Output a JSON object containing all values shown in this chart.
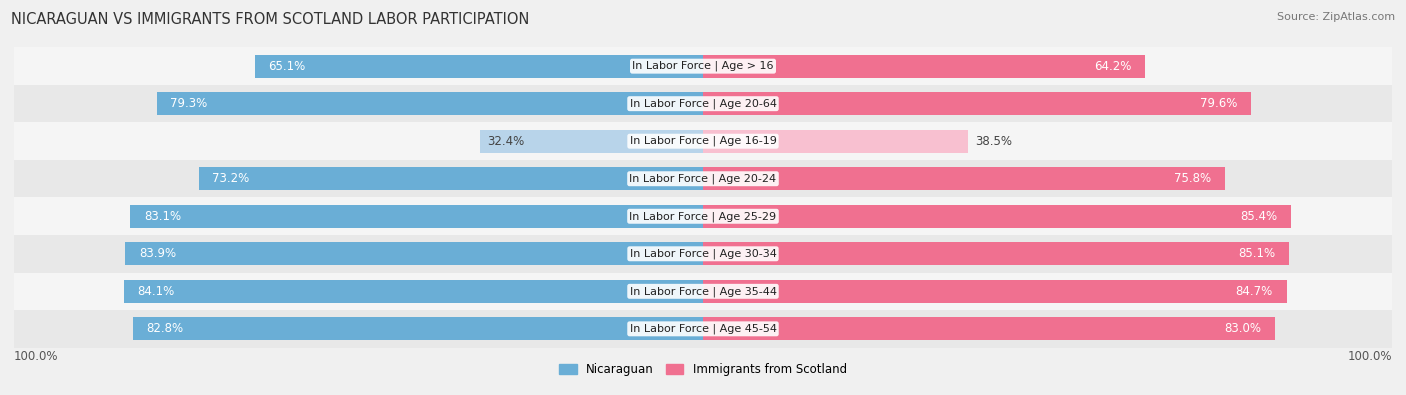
{
  "title": "NICARAGUAN VS IMMIGRANTS FROM SCOTLAND LABOR PARTICIPATION",
  "source": "Source: ZipAtlas.com",
  "categories": [
    "In Labor Force | Age > 16",
    "In Labor Force | Age 20-64",
    "In Labor Force | Age 16-19",
    "In Labor Force | Age 20-24",
    "In Labor Force | Age 25-29",
    "In Labor Force | Age 30-34",
    "In Labor Force | Age 35-44",
    "In Labor Force | Age 45-54"
  ],
  "nicaraguan_values": [
    65.1,
    79.3,
    32.4,
    73.2,
    83.1,
    83.9,
    84.1,
    82.8
  ],
  "scotland_values": [
    64.2,
    79.6,
    38.5,
    75.8,
    85.4,
    85.1,
    84.7,
    83.0
  ],
  "nicaraguan_color": "#6aaed6",
  "scotland_color": "#f07090",
  "nicaraguan_color_light": "#b8d4ea",
  "scotland_color_light": "#f8c0d0",
  "bar_height": 0.62,
  "background_color": "#f0f0f0",
  "row_bg_even": "#f5f5f5",
  "row_bg_odd": "#e8e8e8",
  "legend_nicaraguan": "Nicaraguan",
  "legend_scotland": "Immigrants from Scotland",
  "max_value": 100.0,
  "label_fontsize": 8.5,
  "title_fontsize": 10.5,
  "source_fontsize": 8,
  "cat_label_fontsize": 8
}
